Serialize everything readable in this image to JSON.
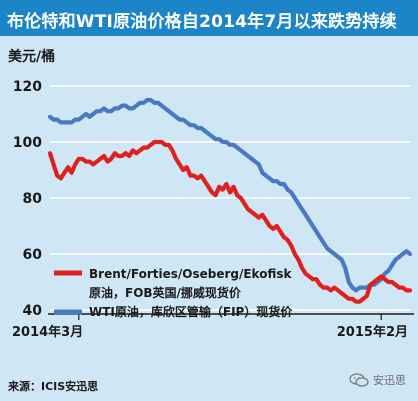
{
  "header": {
    "title": "布伦特和WTI原油价格自2014年7月以来跌势持续",
    "unit": "美元/桶"
  },
  "footer": {
    "source": "来源：ICIS安迅思",
    "watermark": "安迅思"
  },
  "colors": {
    "background": "#cfe7f5",
    "title_bar": "#1b85c7",
    "brent": "#e02020",
    "wti": "#4a78c4"
  },
  "chart_data": {
    "type": "line",
    "title": "",
    "xlabel": "",
    "ylabel": "美元/桶",
    "ylim": [
      40,
      120
    ],
    "yticks": [
      40,
      60,
      80,
      100,
      120
    ],
    "xlim": [
      0,
      100
    ],
    "x_tick_labels": [
      {
        "x": 8,
        "label": "2014年3月"
      },
      {
        "x": 92,
        "label": "2015年2月"
      }
    ],
    "grid": true,
    "legend_position": "bottom-left",
    "series": [
      {
        "name_line1": "Brent/Forties/Oseberg/Ekofisk",
        "name_line2": "原油，FOB英国/挪威现货价",
        "color": "#e02020",
        "x": [
          0,
          1,
          2,
          3,
          4,
          5,
          6,
          7,
          8,
          9,
          10,
          11,
          12,
          13,
          14,
          15,
          16,
          17,
          18,
          19,
          20,
          21,
          22,
          23,
          24,
          25,
          26,
          27,
          28,
          29,
          30,
          31,
          32,
          33,
          34,
          35,
          36,
          37,
          38,
          39,
          40,
          41,
          42,
          43,
          44,
          45,
          46,
          47,
          48,
          49,
          50,
          51,
          52,
          53,
          54,
          55,
          56,
          57,
          58,
          59,
          60,
          61,
          62,
          63,
          64,
          65,
          66,
          67,
          68,
          69,
          70,
          71,
          72,
          73,
          74,
          75,
          76,
          77,
          78,
          79,
          80,
          81,
          82,
          83,
          84,
          85,
          86,
          87,
          88,
          89,
          90,
          91,
          92,
          93,
          94,
          95,
          96,
          97,
          98,
          99,
          100
        ],
        "y": [
          96,
          92,
          88,
          87,
          89,
          91,
          89,
          92,
          94,
          94,
          93,
          93,
          92,
          93,
          94,
          95,
          93,
          94,
          96,
          95,
          95,
          96,
          95,
          97,
          96,
          97,
          98,
          98,
          99,
          100,
          100,
          100,
          99,
          99,
          97,
          94,
          92,
          90,
          91,
          88,
          88,
          87,
          88,
          86,
          84,
          82,
          81,
          84,
          83,
          85,
          82,
          84,
          81,
          80,
          78,
          76,
          75,
          74,
          73,
          74,
          72,
          70,
          69,
          70,
          68,
          66,
          65,
          63,
          60,
          58,
          55,
          53,
          52,
          51,
          51,
          49,
          48,
          48,
          47,
          48,
          47,
          46,
          45,
          44,
          44,
          43,
          43,
          44,
          45,
          49,
          50,
          51,
          52,
          51,
          50,
          50,
          49,
          48,
          48,
          47,
          47
        ]
      },
      {
        "name_line1": "WTI原油，库欣区管输（FIP）现货价",
        "name_line2": "",
        "color": "#4a78c4",
        "x": [
          0,
          1,
          2,
          3,
          4,
          5,
          6,
          7,
          8,
          9,
          10,
          11,
          12,
          13,
          14,
          15,
          16,
          17,
          18,
          19,
          20,
          21,
          22,
          23,
          24,
          25,
          26,
          27,
          28,
          29,
          30,
          31,
          32,
          33,
          34,
          35,
          36,
          37,
          38,
          39,
          40,
          41,
          42,
          43,
          44,
          45,
          46,
          47,
          48,
          49,
          50,
          51,
          52,
          53,
          54,
          55,
          56,
          57,
          58,
          59,
          60,
          61,
          62,
          63,
          64,
          65,
          66,
          67,
          68,
          69,
          70,
          71,
          72,
          73,
          74,
          75,
          76,
          77,
          78,
          79,
          80,
          81,
          82,
          83,
          84,
          85,
          86,
          87,
          88,
          89,
          90,
          91,
          92,
          93,
          94,
          95,
          96,
          97,
          98,
          99,
          100
        ],
        "y": [
          109,
          108,
          108,
          107,
          107,
          107,
          107,
          108,
          108,
          109,
          110,
          109,
          110,
          111,
          111,
          112,
          111,
          111,
          112,
          112,
          113,
          113,
          112,
          112,
          113,
          114,
          114,
          115,
          115,
          114,
          114,
          113,
          112,
          111,
          110,
          109,
          108,
          108,
          107,
          106,
          106,
          105,
          105,
          104,
          103,
          102,
          101,
          101,
          100,
          100,
          99,
          99,
          98,
          97,
          96,
          95,
          94,
          93,
          92,
          89,
          88,
          87,
          86,
          86,
          85,
          85,
          83,
          82,
          80,
          78,
          76,
          74,
          72,
          70,
          68,
          66,
          64,
          62,
          61,
          60,
          59,
          58,
          55,
          50,
          48,
          47,
          48,
          48,
          48,
          49,
          49,
          50,
          51,
          53,
          54,
          56,
          58,
          59,
          60,
          61,
          60
        ]
      }
    ]
  }
}
